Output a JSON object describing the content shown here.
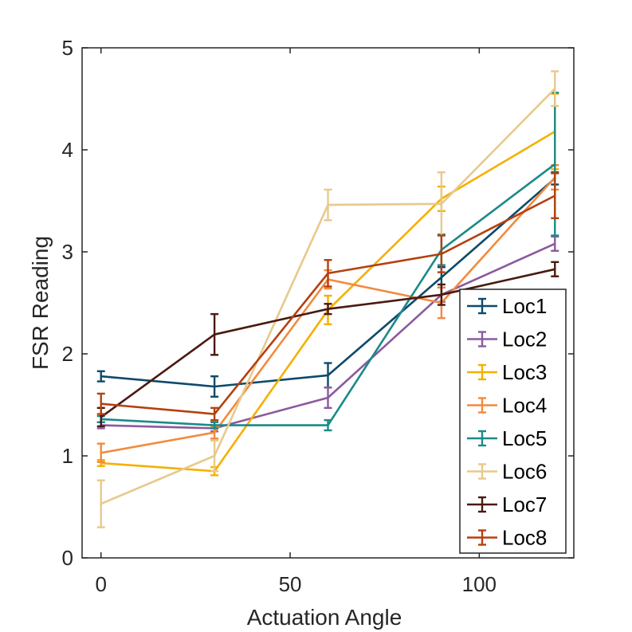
{
  "chart_data": {
    "type": "line",
    "title": "",
    "xlabel": "Actuation Angle",
    "ylabel": "FSR Reading",
    "xlim": [
      -5,
      125
    ],
    "ylim": [
      0,
      5
    ],
    "x_ticks": [
      0,
      50,
      100
    ],
    "y_ticks": [
      0,
      1,
      2,
      3,
      4,
      5
    ],
    "x": [
      0,
      30,
      60,
      90,
      120
    ],
    "legend_position": "bottom-right",
    "series": [
      {
        "name": "Loc1",
        "color": "#0d4a6b",
        "values": [
          1.78,
          1.68,
          1.79,
          2.75,
          3.72
        ],
        "errors": [
          0.05,
          0.1,
          0.12,
          0.1,
          0.06
        ]
      },
      {
        "name": "Loc2",
        "color": "#8b5a9e",
        "values": [
          1.3,
          1.27,
          1.57,
          2.58,
          3.08
        ],
        "errors": [
          0.03,
          0.03,
          0.1,
          0.07,
          0.07
        ]
      },
      {
        "name": "Loc3",
        "color": "#f5b000",
        "values": [
          0.93,
          0.85,
          2.43,
          3.52,
          4.18
        ],
        "errors": [
          0.03,
          0.04,
          0.14,
          0.12,
          0.37
        ]
      },
      {
        "name": "Loc4",
        "color": "#f28a3c",
        "values": [
          1.03,
          1.23,
          2.73,
          2.5,
          3.73
        ],
        "errors": [
          0.09,
          0.06,
          0.09,
          0.15,
          0.12
        ]
      },
      {
        "name": "Loc5",
        "color": "#1a8a88",
        "values": [
          1.36,
          1.3,
          1.3,
          3.02,
          3.86
        ],
        "errors": [
          0.03,
          0.03,
          0.05,
          0.15,
          0.7
        ]
      },
      {
        "name": "Loc6",
        "color": "#e8c98c",
        "values": [
          0.53,
          1.0,
          3.46,
          3.47,
          4.6
        ],
        "errors": [
          0.23,
          0.15,
          0.15,
          0.31,
          0.17
        ]
      },
      {
        "name": "Loc7",
        "color": "#4a1a0f",
        "values": [
          1.38,
          2.19,
          2.44,
          2.58,
          2.83
        ],
        "errors": [
          0.09,
          0.2,
          0.05,
          0.1,
          0.07
        ]
      },
      {
        "name": "Loc8",
        "color": "#b5400f",
        "values": [
          1.51,
          1.41,
          2.79,
          2.98,
          3.55
        ],
        "errors": [
          0.1,
          0.06,
          0.13,
          0.18,
          0.22
        ]
      }
    ]
  }
}
